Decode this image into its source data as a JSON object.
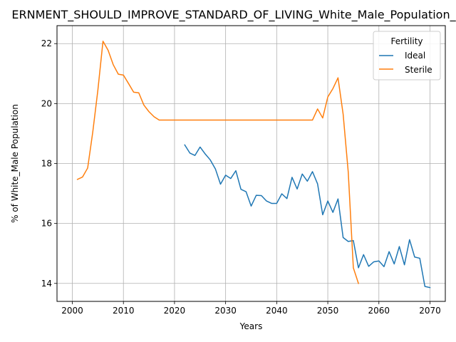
{
  "chart_data": {
    "type": "line",
    "title": "ERNMENT_SHOULD_IMPROVE_STANDARD_OF_LIVING_White_Male_Population_",
    "xlabel": "Years",
    "ylabel": "% of White_Male Population",
    "xlim": [
      1997,
      2073
    ],
    "ylim": [
      13.4,
      22.6
    ],
    "xticks": [
      2000,
      2010,
      2020,
      2030,
      2040,
      2050,
      2060,
      2070
    ],
    "yticks": [
      14,
      16,
      18,
      20,
      22
    ],
    "grid": true,
    "legend": {
      "title": "Fertility",
      "position": "top-right"
    },
    "series": [
      {
        "name": "Ideal",
        "color": "#1f77b4",
        "x": [
          2022,
          2023,
          2024,
          2025,
          2026,
          2027,
          2028,
          2029,
          2030,
          2031,
          2032,
          2033,
          2034,
          2035,
          2036,
          2037,
          2038,
          2039,
          2040,
          2041,
          2042,
          2043,
          2044,
          2045,
          2046,
          2047,
          2048,
          2049,
          2050,
          2051,
          2052,
          2053,
          2054,
          2055,
          2056,
          2057,
          2058,
          2059,
          2060,
          2061,
          2062,
          2063,
          2064,
          2065,
          2066,
          2067,
          2068,
          2069,
          2070
        ],
        "y": [
          18.62,
          18.35,
          18.27,
          18.55,
          18.32,
          18.12,
          17.82,
          17.31,
          17.61,
          17.5,
          17.76,
          17.14,
          17.06,
          16.58,
          16.94,
          16.93,
          16.75,
          16.67,
          16.67,
          16.99,
          16.83,
          17.54,
          17.15,
          17.65,
          17.41,
          17.73,
          17.32,
          16.29,
          16.75,
          16.37,
          16.82,
          15.53,
          15.4,
          15.43,
          14.52,
          14.96,
          14.57,
          14.72,
          14.75,
          14.56,
          15.06,
          14.65,
          15.23,
          14.62,
          15.46,
          14.88,
          14.84,
          13.9,
          13.86
        ]
      },
      {
        "name": "Sterile",
        "color": "#ff7f0e",
        "x": [
          2001,
          2002,
          2003,
          2004,
          2005,
          2006,
          2007,
          2008,
          2009,
          2010,
          2011,
          2012,
          2013,
          2014,
          2015,
          2016,
          2017,
          2018,
          2019,
          2020,
          2021,
          2022,
          2023,
          2024,
          2025,
          2026,
          2027,
          2028,
          2029,
          2030,
          2031,
          2032,
          2033,
          2034,
          2035,
          2036,
          2037,
          2038,
          2039,
          2040,
          2041,
          2042,
          2043,
          2044,
          2045,
          2046,
          2047,
          2048,
          2049,
          2050,
          2051,
          2052,
          2053,
          2054,
          2055,
          2056
        ],
        "y": [
          17.47,
          17.55,
          17.85,
          19.05,
          20.45,
          22.08,
          21.78,
          21.3,
          20.98,
          20.95,
          20.67,
          20.38,
          20.36,
          19.95,
          19.73,
          19.56,
          19.45,
          19.45,
          19.45,
          19.45,
          19.45,
          19.45,
          19.45,
          19.45,
          19.45,
          19.45,
          19.45,
          19.45,
          19.45,
          19.45,
          19.45,
          19.45,
          19.45,
          19.45,
          19.45,
          19.45,
          19.45,
          19.45,
          19.45,
          19.45,
          19.45,
          19.45,
          19.45,
          19.45,
          19.45,
          19.45,
          19.45,
          19.82,
          19.52,
          20.22,
          20.5,
          20.86,
          19.65,
          17.72,
          14.52,
          14.0
        ]
      }
    ]
  }
}
